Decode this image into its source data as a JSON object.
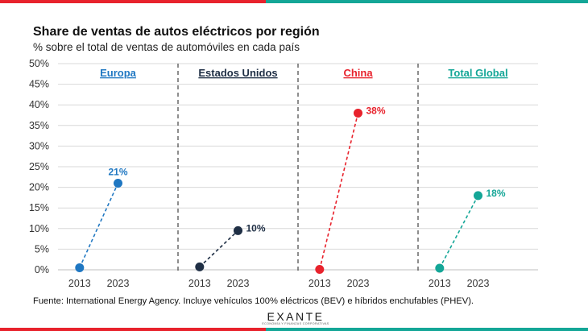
{
  "title": "Share de ventas de autos eléctricos por región",
  "subtitle": "% sobre el total de ventas de automóviles en cada país",
  "source": "Fuente: International Energy Agency. Incluye vehículos 100% eléctricos (BEV) e híbridos enchufables (PHEV).",
  "logo": {
    "name": "EXANTE",
    "tagline": "ECONOMÍA Y FINANZAS CORPORATIVAS"
  },
  "colors": {
    "europa": "#1f77c2",
    "eeuu": "#1f2f45",
    "china": "#e8222c",
    "global": "#14a697",
    "top_red": "#e8222c",
    "top_teal": "#14a697"
  },
  "chart_data": {
    "type": "line",
    "yticks": [
      "0%",
      "5%",
      "10%",
      "15%",
      "20%",
      "25%",
      "30%",
      "35%",
      "40%",
      "45%",
      "50%"
    ],
    "ylim": [
      0,
      50
    ],
    "categories": [
      "2013",
      "2023"
    ],
    "grid": true,
    "panels": [
      {
        "name": "Europa",
        "color": "#1f77c2",
        "values": [
          0.5,
          21
        ],
        "label": "21%",
        "label_pos": "above"
      },
      {
        "name": "Estados Unidos",
        "color": "#1f2f45",
        "values": [
          0.7,
          9.5
        ],
        "label": "10%",
        "label_pos": "right"
      },
      {
        "name": "China",
        "color": "#e8222c",
        "values": [
          0.1,
          38
        ],
        "label": "38%",
        "label_pos": "right"
      },
      {
        "name": "Total Global",
        "color": "#14a697",
        "values": [
          0.4,
          18
        ],
        "label": "18%",
        "label_pos": "right"
      }
    ]
  }
}
